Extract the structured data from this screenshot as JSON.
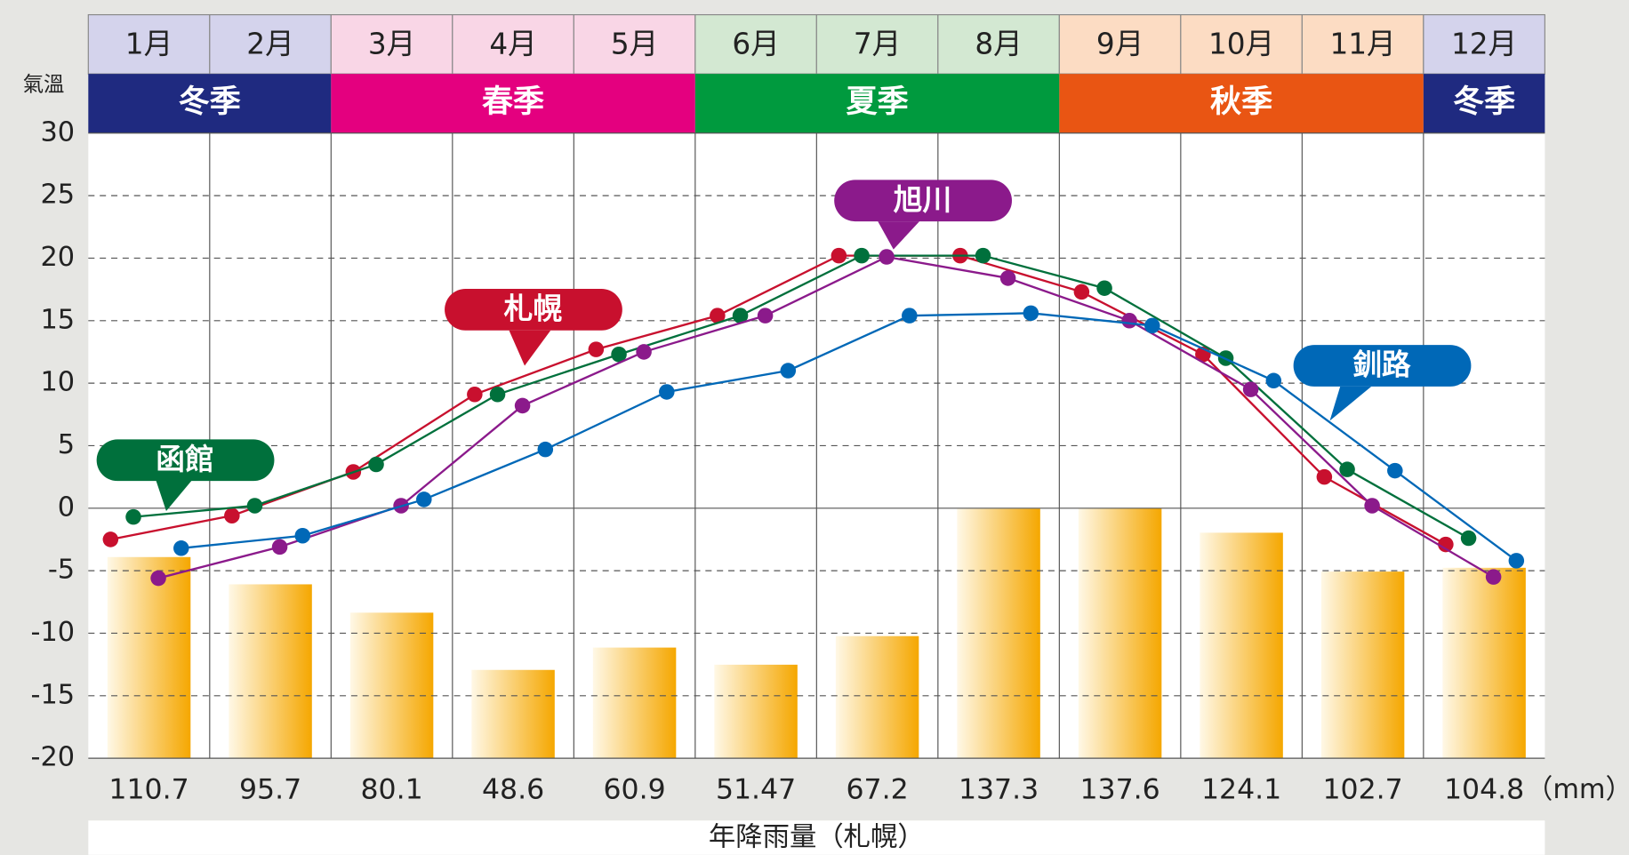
{
  "chart_data": {
    "type": "line",
    "y_label": "氣溫",
    "categories": [
      "1月",
      "2月",
      "3月",
      "4月",
      "5月",
      "6月",
      "7月",
      "8月",
      "9月",
      "10月",
      "11月",
      "12月"
    ],
    "seasons": [
      {
        "name": "冬季",
        "span": 2,
        "color": "#1f2a80",
        "light": "#d4d3ec"
      },
      {
        "name": "春季",
        "span": 3,
        "color": "#e4007f",
        "light": "#f9d6e6"
      },
      {
        "name": "夏季",
        "span": 3,
        "color": "#009a3e",
        "light": "#d3e8d2"
      },
      {
        "name": "秋季",
        "span": 3,
        "color": "#e95513",
        "light": "#fcdcc3"
      },
      {
        "name": "冬季",
        "span": 1,
        "color": "#1f2a80",
        "light": "#d4d3ec"
      }
    ],
    "ylim": [
      -20,
      30
    ],
    "yticks": [
      -20,
      -15,
      -10,
      -5,
      0,
      5,
      10,
      15,
      20,
      25,
      30
    ],
    "grid": true,
    "series": [
      {
        "name": "札幌",
        "color": "#c8102e",
        "values": [
          -2.5,
          -0.6,
          2.9,
          9.1,
          12.7,
          15.4,
          20.2,
          20.2,
          17.3,
          12.3,
          2.5,
          -2.9
        ]
      },
      {
        "name": "函館",
        "color": "#00703c",
        "values": [
          -0.7,
          0.2,
          3.5,
          9.1,
          12.3,
          15.4,
          20.2,
          20.2,
          17.6,
          12.0,
          3.1,
          -2.4
        ]
      },
      {
        "name": "旭川",
        "color": "#8b1a8b",
        "values": [
          -5.6,
          -3.1,
          0.2,
          8.2,
          12.5,
          15.4,
          20.1,
          18.4,
          15.0,
          9.5,
          0.2,
          -5.5
        ]
      },
      {
        "name": "釧路",
        "color": "#0068b7",
        "values": [
          -3.2,
          -2.2,
          0.7,
          4.7,
          9.3,
          11.0,
          15.4,
          15.6,
          14.6,
          10.2,
          3.0,
          -4.2
        ]
      }
    ],
    "precipitation": {
      "label": "年降雨量（札幌）",
      "unit": "（mm）",
      "color": "#f5a700",
      "values": [
        110.7,
        95.7,
        80.1,
        48.6,
        60.9,
        51.47,
        67.2,
        137.3,
        137.6,
        124.1,
        102.7,
        104.8
      ]
    }
  }
}
